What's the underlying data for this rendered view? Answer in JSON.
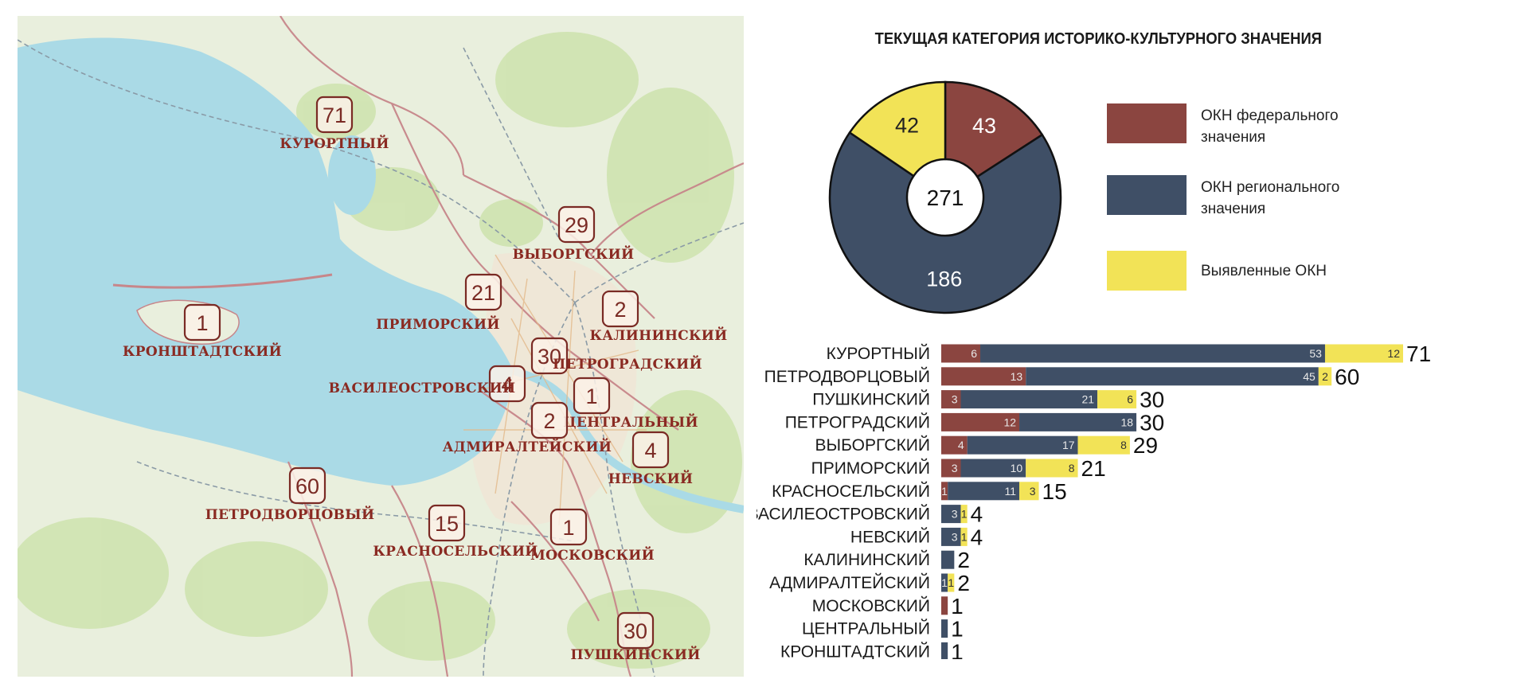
{
  "map": {
    "districts": [
      {
        "name": "КУРОРТНЫЙ",
        "count": "71"
      },
      {
        "name": "ВЫБОРГСКИЙ",
        "count": "29"
      },
      {
        "name": "ПРИМОРСКИЙ",
        "count": "21"
      },
      {
        "name": "КАЛИНИНСКИЙ",
        "count": "2"
      },
      {
        "name": "КРОНШТАДТСКИЙ",
        "count": "1"
      },
      {
        "name": "ПЕТРОГРАДСКИЙ",
        "count": "30"
      },
      {
        "name": "ВАСИЛЕОСТРОВСКИЙ",
        "count": "4"
      },
      {
        "name": "ЦЕНТРАЛЬНЫЙ",
        "count": "1"
      },
      {
        "name": "АДМИРАЛТЕЙСКИЙ",
        "count": "2"
      },
      {
        "name": "НЕВСКИЙ",
        "count": "4"
      },
      {
        "name": "ПЕТРОДВОРЦОВЫЙ",
        "count": "60"
      },
      {
        "name": "КРАСНОСЕЛЬСКИЙ",
        "count": "15"
      },
      {
        "name": "МОСКОВСКИЙ",
        "count": "1"
      },
      {
        "name": "ПУШКИНСКИЙ",
        "count": "30"
      }
    ],
    "colors": {
      "water": "#aadae6",
      "land": "#e9efdd",
      "park": "#cfe3b0",
      "district_border": "#c7868a",
      "marker": "#7a2a24"
    }
  },
  "chart_data": [
    {
      "type": "pie",
      "title": "ТЕКУЩАЯ КАТЕГОРИЯ ИСТОРИКО-КУЛЬТУРНОГО ЗНАЧЕНИЯ",
      "center_label": "271",
      "slices": [
        {
          "name": "ОКН федерального значения",
          "value": 43,
          "label": "43",
          "color": "#8b4540"
        },
        {
          "name": "ОКН регионального значения",
          "value": 186,
          "label": "186",
          "color": "#3f4f66"
        },
        {
          "name": "Выявленные ОКН",
          "value": 42,
          "label": "42",
          "color": "#f2e357"
        }
      ],
      "legend": [
        {
          "line1": "ОКН федерального",
          "line2": "значения",
          "color": "#8b4540"
        },
        {
          "line1": "ОКН регионального",
          "line2": "значения",
          "color": "#3f4f66"
        },
        {
          "line1": "Выявленные ОКН",
          "line2": "",
          "color": "#f2e357"
        }
      ],
      "legend_position": "right"
    },
    {
      "type": "bar",
      "orientation": "horizontal",
      "stacked": true,
      "categories": [
        "КУРОРТНЫЙ",
        "ПЕТРОДВОРЦОВЫЙ",
        "ПУШКИНСКИЙ",
        "ПЕТРОГРАДСКИЙ",
        "ВЫБОРГСКИЙ",
        "ПРИМОРСКИЙ",
        "КРАСНОСЕЛЬСКИЙ",
        "ВАСИЛЕОСТРОВСКИЙ",
        "НЕВСКИЙ",
        "КАЛИНИНСКИЙ",
        "АДМИРАЛТЕЙСКИЙ",
        "МОСКОВСКИЙ",
        "ЦЕНТРАЛЬНЫЙ",
        "КРОНШТАДТСКИЙ"
      ],
      "series": [
        {
          "color": "#8b4540",
          "values": [
            6,
            13,
            3,
            12,
            4,
            3,
            1,
            0,
            0,
            0,
            0,
            1,
            0,
            0
          ],
          "labels": [
            "6",
            "13",
            "3",
            "12",
            "4",
            "3",
            "1",
            "",
            "",
            "",
            "",
            "",
            "",
            ""
          ]
        },
        {
          "color": "#3f4f66",
          "values": [
            53,
            45,
            21,
            18,
            17,
            10,
            11,
            3,
            3,
            2,
            1,
            0,
            1,
            1
          ],
          "labels": [
            "53",
            "45",
            "21",
            "18",
            "17",
            "10",
            "11",
            "3",
            "3",
            "",
            "1",
            "",
            "",
            ""
          ]
        },
        {
          "color": "#f2e357",
          "values": [
            12,
            2,
            6,
            0,
            8,
            8,
            3,
            1,
            1,
            0,
            1,
            0,
            0,
            0
          ],
          "labels": [
            "12",
            "2",
            "6",
            "",
            "8",
            "8",
            "3",
            "1",
            "1",
            "",
            "1",
            "",
            "",
            ""
          ]
        }
      ],
      "totals": [
        "71",
        "60",
        "30",
        "30",
        "29",
        "21",
        "15",
        "4",
        "4",
        "2",
        "2",
        "1",
        "1",
        "1"
      ],
      "xlim": [
        0,
        71
      ]
    }
  ]
}
